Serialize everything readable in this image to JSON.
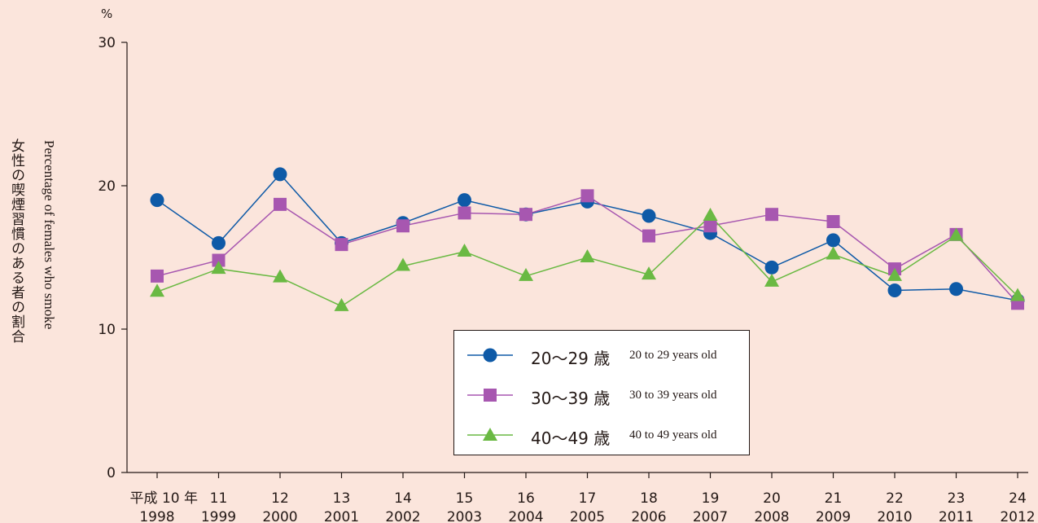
{
  "chart_data": {
    "type": "line",
    "unit": "%",
    "ylabel_jp": "女性の喫煙習慣のある者の割合",
    "ylabel_en": "Percentage of females who smoke",
    "ylim": [
      0,
      30
    ],
    "yticks": [
      0,
      10,
      20,
      30
    ],
    "x_jp": [
      "平成 10 年",
      "11",
      "12",
      "13",
      "14",
      "15",
      "16",
      "17",
      "18",
      "19",
      "20",
      "21",
      "22",
      "23",
      "24"
    ],
    "x": [
      "1998",
      "1999",
      "2000",
      "2001",
      "2002",
      "2003",
      "2004",
      "2005",
      "2006",
      "2007",
      "2008",
      "2009",
      "2010",
      "2011",
      "2012"
    ],
    "series": [
      {
        "name": "20〜29 歳",
        "name_en": "20 to 29 years old",
        "marker": "circle",
        "color": "#0e5aa7",
        "values": [
          19.0,
          16.0,
          20.8,
          16.0,
          17.4,
          19.0,
          18.0,
          18.9,
          17.9,
          16.7,
          14.3,
          16.2,
          12.7,
          12.8,
          12.0
        ]
      },
      {
        "name": "30〜39 歳",
        "name_en": "30 to 39 years old",
        "marker": "square",
        "color": "#a757b0",
        "values": [
          13.7,
          14.8,
          18.7,
          15.9,
          17.2,
          18.1,
          18.0,
          19.3,
          16.5,
          17.2,
          18.0,
          17.5,
          14.2,
          16.6,
          11.8
        ]
      },
      {
        "name": "40〜49 歳",
        "name_en": "40 to 49 years old",
        "marker": "triangle",
        "color": "#6ab943",
        "values": [
          12.6,
          14.2,
          13.6,
          11.6,
          14.4,
          15.4,
          13.7,
          15.0,
          13.8,
          17.9,
          13.3,
          15.2,
          13.7,
          16.5,
          12.3
        ]
      }
    ]
  }
}
